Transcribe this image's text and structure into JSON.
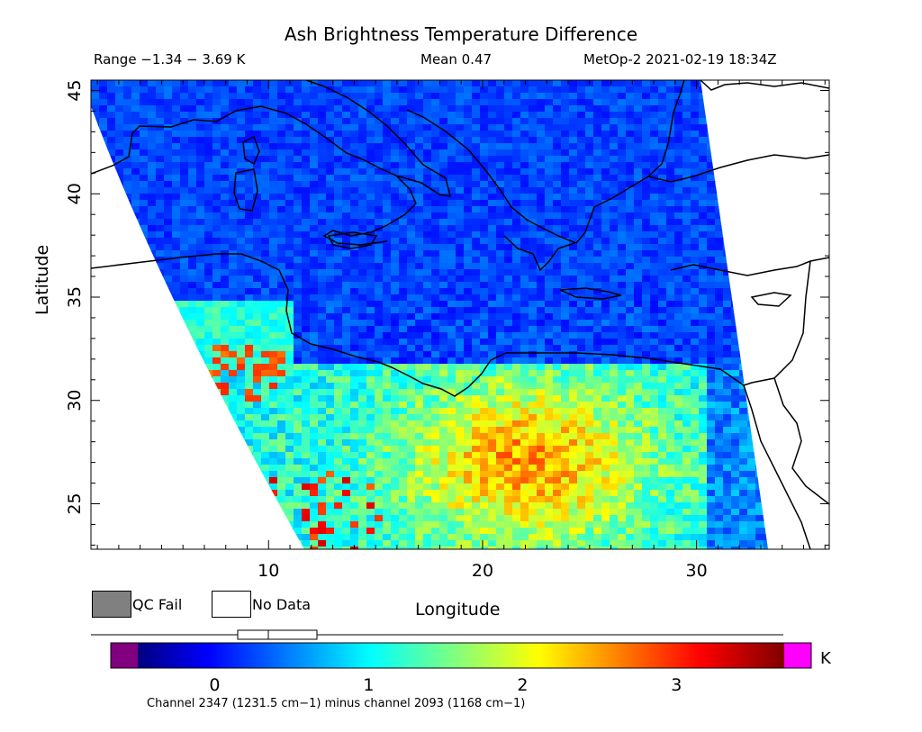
{
  "header": {
    "title": "Ash Brightness Temperature Difference",
    "range": "Range −1.34 − 3.69 K",
    "mean": "Mean 0.47",
    "source": "MetOp-2 2021-02-19 18:34Z"
  },
  "axes": {
    "xlabel": "Longitude",
    "ylabel": "Latitude",
    "x_ticks": [
      "10",
      "20",
      "30"
    ],
    "y_ticks": [
      "45",
      "40",
      "35",
      "30",
      "25"
    ],
    "xlim": [
      1.7,
      36.2
    ],
    "ylim": [
      22.8,
      45.5
    ]
  },
  "legend": {
    "qc_fail": "QC Fail",
    "no_data": "No Data",
    "qc_color": "#808080",
    "no_data_color": "#ffffff"
  },
  "colorbar": {
    "unit": "K",
    "tick_labels": [
      "0",
      "1",
      "2",
      "3"
    ],
    "tick_values": [
      0,
      1,
      2,
      3
    ],
    "vmin": -0.5,
    "vmax": 3.7,
    "under_color": "#800080",
    "over_color": "#ff00ff",
    "colormap": "jet",
    "subtitle": "Channel 2347 (1231.5 cm−1) minus channel 2093 (1168 cm−1)"
  }
}
